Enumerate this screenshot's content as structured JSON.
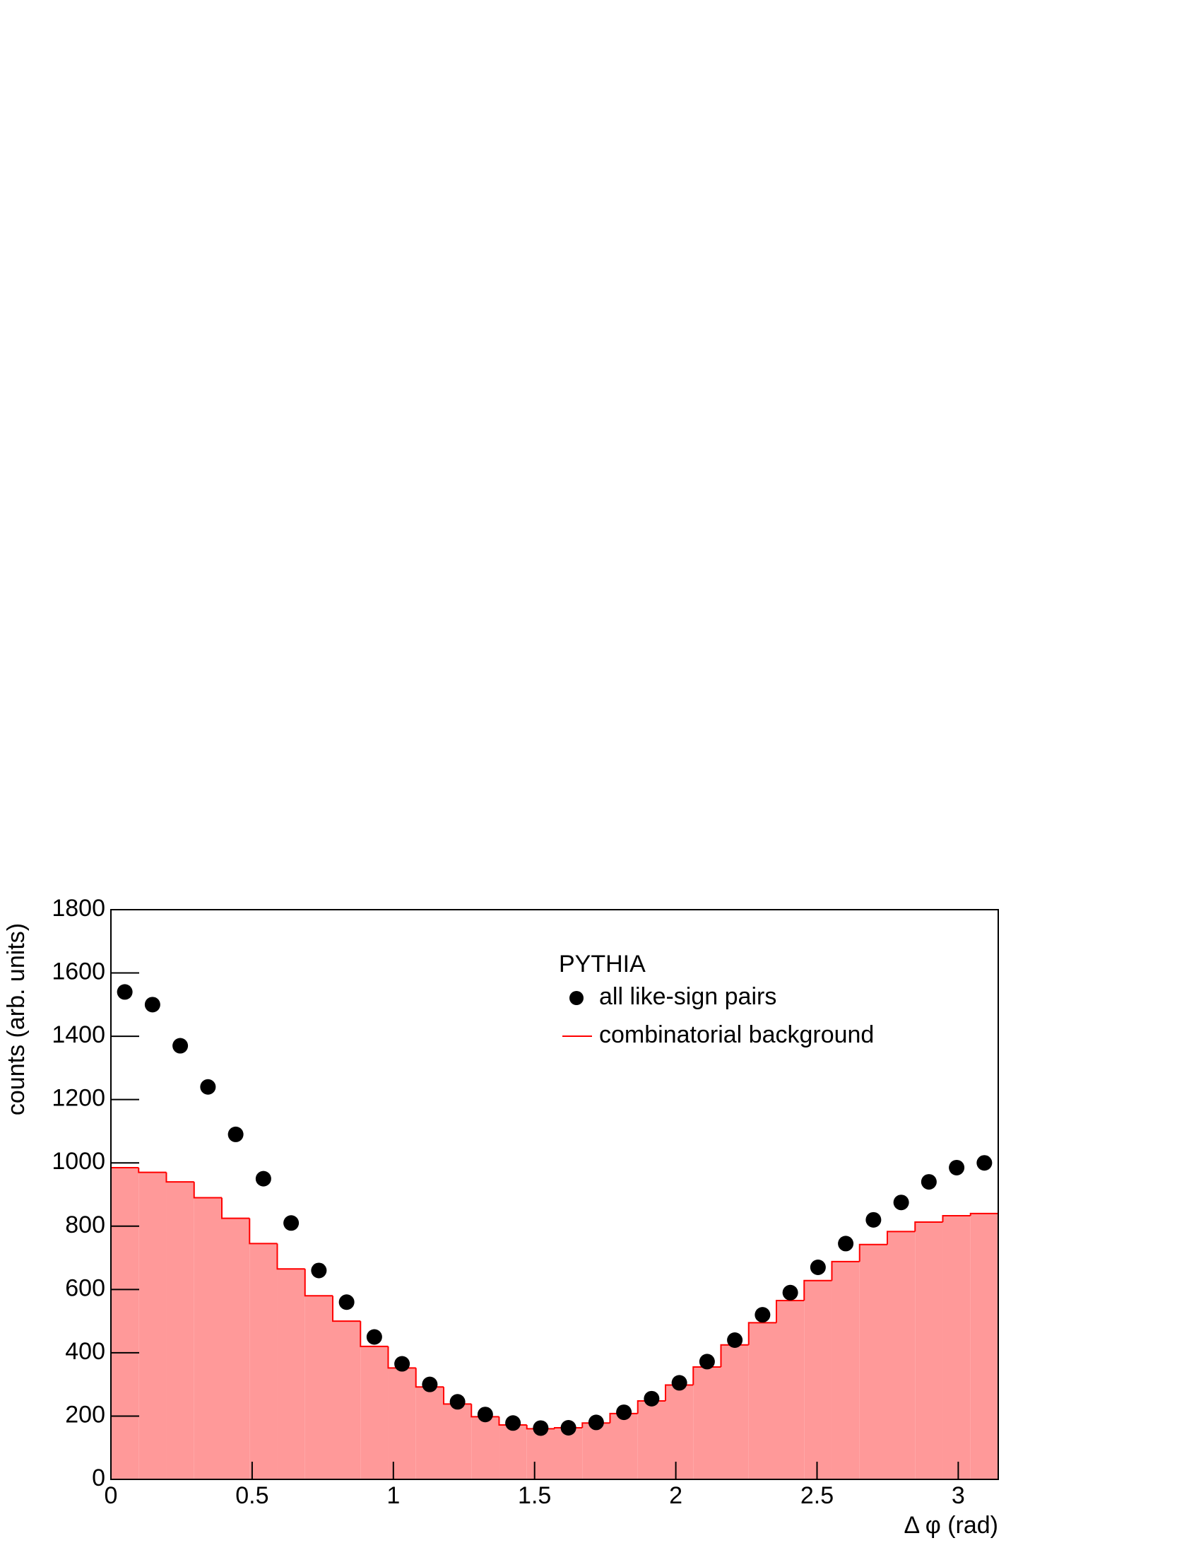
{
  "chart_data": {
    "type": "histogram",
    "xlabel": "Δ φ (rad)",
    "ylabel": "counts (arb. units)",
    "legend_title": "PYTHIA",
    "bins": [
      0,
      0.0982,
      0.1963,
      0.2945,
      0.3927,
      0.4909,
      0.589,
      0.6872,
      0.7854,
      0.8836,
      0.9817,
      1.0799,
      1.1781,
      1.2763,
      1.3744,
      1.4726,
      1.5708,
      1.669,
      1.7671,
      1.8653,
      1.9635,
      2.0617,
      2.1598,
      2.258,
      2.3562,
      2.4544,
      2.5525,
      2.6507,
      2.7489,
      2.8471,
      2.9452,
      3.0434,
      3.1416
    ],
    "series": [
      {
        "name": "all like-sign pairs",
        "color": "#000000",
        "style": "markers",
        "values": [
          1540,
          1500,
          1370,
          1240,
          1090,
          950,
          810,
          660,
          560,
          450,
          365,
          300,
          245,
          205,
          178,
          162,
          163,
          180,
          212,
          255,
          305,
          372,
          440,
          520,
          590,
          670,
          745,
          820,
          875,
          940,
          985,
          1000
        ]
      },
      {
        "name": "combinatorial background",
        "color": "#ff0000",
        "fill": "#ff9999",
        "style": "filled",
        "values": [
          985,
          970,
          940,
          890,
          825,
          745,
          665,
          580,
          500,
          420,
          352,
          292,
          238,
          198,
          172,
          160,
          163,
          178,
          208,
          248,
          298,
          355,
          425,
          495,
          565,
          628,
          688,
          742,
          783,
          813,
          833,
          840
        ]
      }
    ],
    "xlim": [
      0,
      3.1416
    ],
    "xticks": [
      0,
      0.5,
      1,
      1.5,
      2,
      2.5,
      3
    ],
    "ylim": [
      0,
      1800
    ],
    "yticks": [
      0,
      200,
      400,
      600,
      800,
      1000,
      1200,
      1400,
      1600,
      1800
    ]
  }
}
